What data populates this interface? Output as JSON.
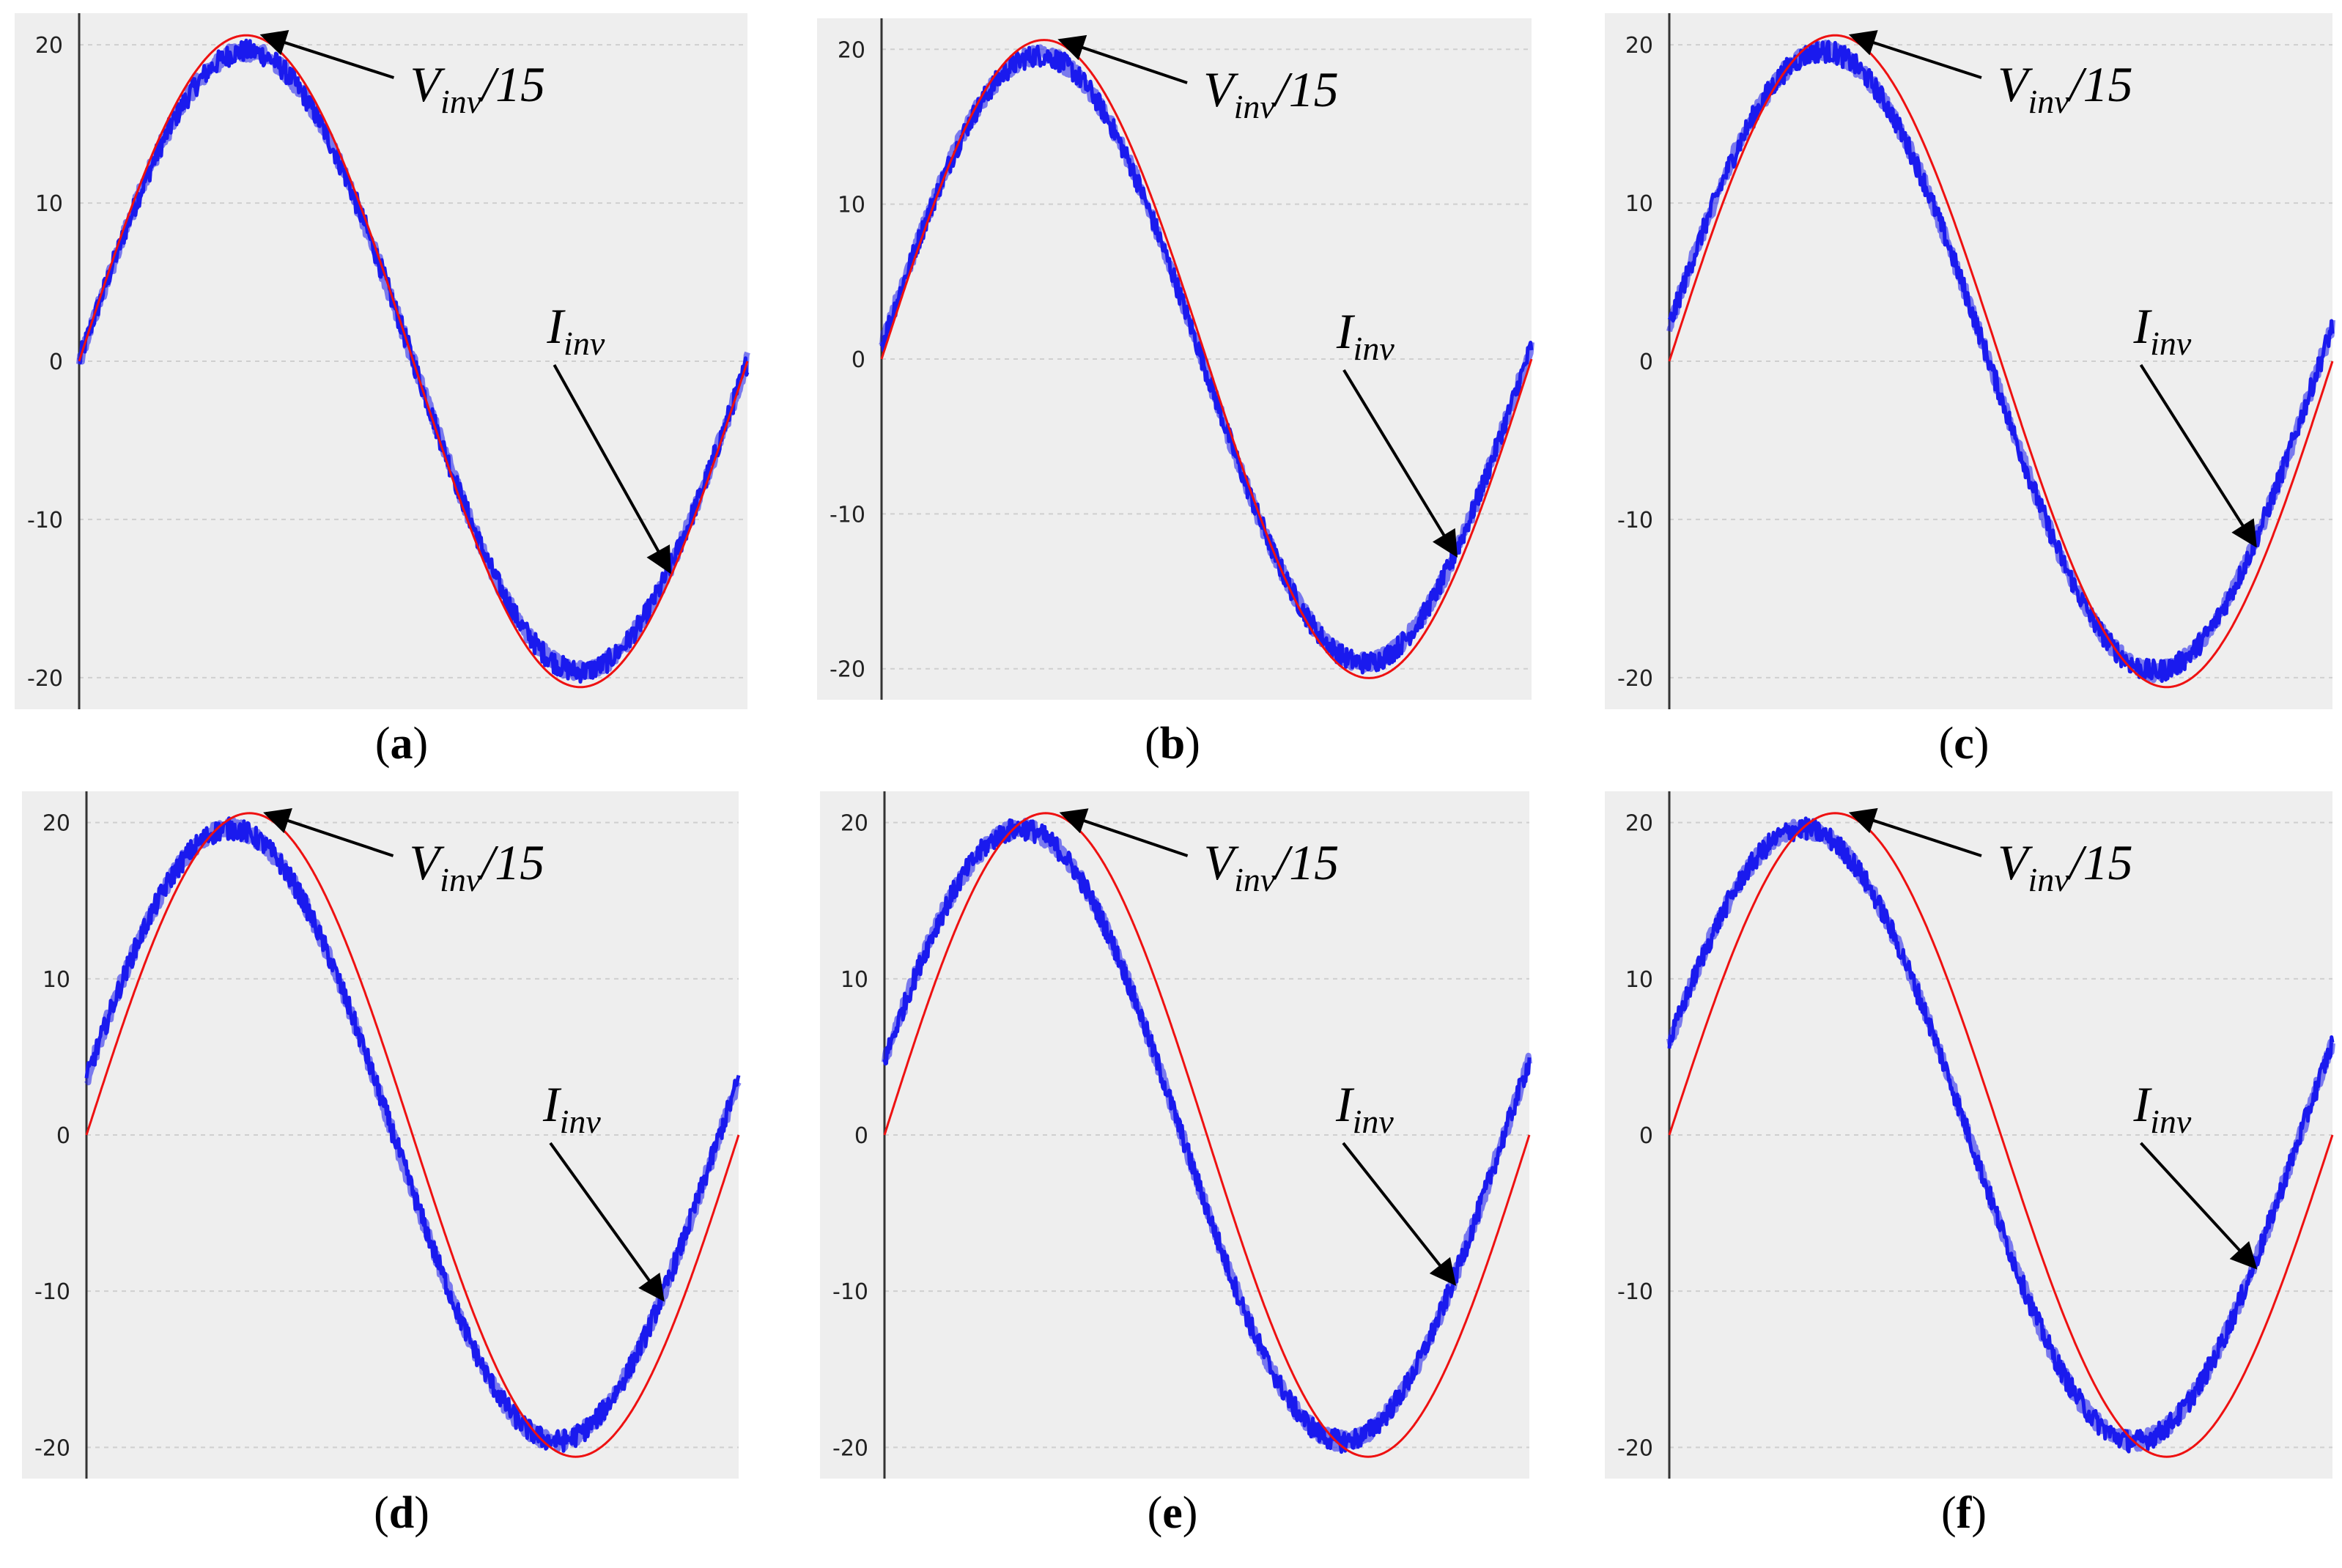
{
  "figure": {
    "colors": {
      "current": "#1a1aee",
      "voltage": "#ee1111",
      "plot_bg": "#eeeeee",
      "grid": "#cfcfcf"
    },
    "annotations": {
      "voltage": {
        "main": "V",
        "sub": "inv",
        "suffix": "/15"
      },
      "current": {
        "main": "I",
        "sub": "inv"
      }
    }
  },
  "chart_data": [
    {
      "type": "line",
      "label_letter": "a",
      "x": [
        0,
        1
      ],
      "xlim": [
        0,
        1
      ],
      "ylim": [
        -22,
        22
      ],
      "y_ticks": [
        20,
        10,
        0,
        -10,
        -20
      ],
      "grid": true,
      "series": [
        {
          "amplitude": 20.6,
          "phase_deg": 0
        },
        {
          "amplitude": 19.6,
          "phase_deg": 0
        }
      ]
    },
    {
      "type": "line",
      "label_letter": "b",
      "x": [
        0,
        1
      ],
      "xlim": [
        0,
        1
      ],
      "ylim": [
        -22,
        22
      ],
      "y_ticks": [
        20,
        10,
        0,
        -10,
        -20
      ],
      "grid": true,
      "series": [
        {
          "amplitude": 20.6,
          "phase_deg": 0
        },
        {
          "amplitude": 19.6,
          "phase_deg": 2.5
        }
      ]
    },
    {
      "type": "line",
      "label_letter": "c",
      "x": [
        0,
        1
      ],
      "xlim": [
        0,
        1
      ],
      "ylim": [
        -22,
        22
      ],
      "y_ticks": [
        20,
        10,
        0,
        -10,
        -20
      ],
      "grid": true,
      "series": [
        {
          "amplitude": 20.6,
          "phase_deg": 0
        },
        {
          "amplitude": 19.6,
          "phase_deg": 6.5
        }
      ]
    },
    {
      "type": "line",
      "label_letter": "d",
      "x": [
        0,
        1
      ],
      "xlim": [
        0,
        1
      ],
      "ylim": [
        -22,
        22
      ],
      "y_ticks": [
        20,
        10,
        0,
        -10,
        -20
      ],
      "grid": true,
      "series": [
        {
          "amplitude": 20.6,
          "phase_deg": 0
        },
        {
          "amplitude": 19.6,
          "phase_deg": 10.5
        }
      ]
    },
    {
      "type": "line",
      "label_letter": "e",
      "x": [
        0,
        1
      ],
      "xlim": [
        0,
        1
      ],
      "ylim": [
        -22,
        22
      ],
      "y_ticks": [
        20,
        10,
        0,
        -10,
        -20
      ],
      "grid": true,
      "series": [
        {
          "amplitude": 20.6,
          "phase_deg": 0
        },
        {
          "amplitude": 19.6,
          "phase_deg": 14
        }
      ]
    },
    {
      "type": "line",
      "label_letter": "f",
      "x": [
        0,
        1
      ],
      "xlim": [
        0,
        1
      ],
      "ylim": [
        -22,
        22
      ],
      "y_ticks": [
        20,
        10,
        0,
        -10,
        -20
      ],
      "grid": true,
      "series": [
        {
          "amplitude": 20.6,
          "phase_deg": 0
        },
        {
          "amplitude": 19.6,
          "phase_deg": 17.5
        }
      ]
    }
  ]
}
